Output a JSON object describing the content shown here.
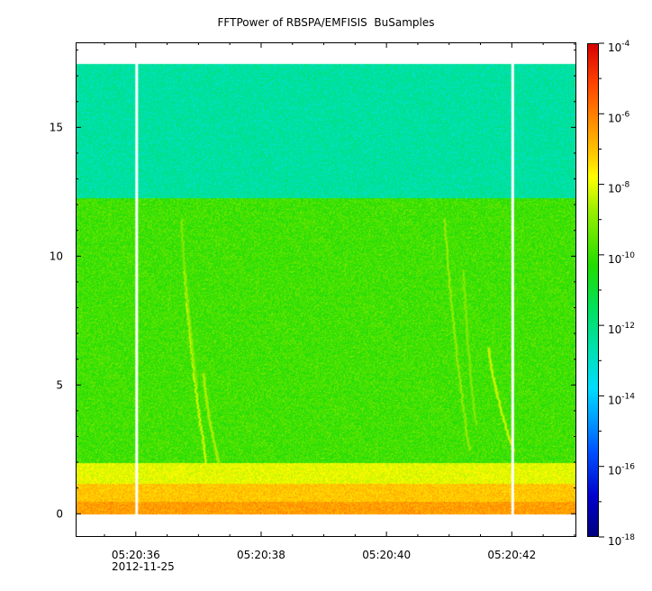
{
  "chart_data": {
    "type": "heatmap",
    "title": "FFTPower of RBSPA/EMFISIS  BuSamples",
    "xlabel": "",
    "ylabel": "",
    "x_ticks": [
      "05:20:36",
      "05:20:38",
      "05:20:40",
      "05:20:42"
    ],
    "x_tick_seconds": [
      36,
      38,
      40,
      42
    ],
    "x_range_seconds": [
      35.04,
      43.03
    ],
    "x_date_label": "2012-11-25",
    "ylim": [
      -0.9,
      18.3
    ],
    "y_ticks": [
      0,
      5,
      10,
      15
    ],
    "colorbar": {
      "scale": "log",
      "range_exponents": [
        -18,
        -4
      ],
      "tick_base": "10",
      "tick_exponents": [
        "-4",
        "-6",
        "-8",
        "-10",
        "-12",
        "-14",
        "-16",
        "-18"
      ]
    },
    "data_gaps_seconds": [
      36.0,
      42.0
    ],
    "bands": [
      {
        "y_range": [
          0,
          0.5
        ],
        "log10_power": -6.9
      },
      {
        "y_range": [
          0.5,
          1.2
        ],
        "log10_power": -7.5
      },
      {
        "y_range": [
          1.2,
          2.0
        ],
        "log10_power": -8.7
      },
      {
        "y_range": [
          2.0,
          12.3
        ],
        "log10_power": -10.3
      },
      {
        "y_range": [
          12.3,
          17.5
        ],
        "log10_power": -12.6
      }
    ],
    "emission_streaks": [
      {
        "t_start": 36.75,
        "y_start": 9.5,
        "t_end": 37.1,
        "y_end": 2.0,
        "log10_power": -8.7
      },
      {
        "t_start": 36.7,
        "y_start": 11.5,
        "t_end": 36.95,
        "y_end": 5.0,
        "log10_power": -9.6
      },
      {
        "t_start": 37.05,
        "y_start": 5.5,
        "t_end": 37.3,
        "y_end": 2.0,
        "log10_power": -9.3
      },
      {
        "t_start": 40.9,
        "y_start": 11.5,
        "t_end": 41.3,
        "y_end": 2.5,
        "log10_power": -9.3
      },
      {
        "t_start": 41.6,
        "y_start": 6.5,
        "t_end": 42.0,
        "y_end": 2.5,
        "log10_power": -9.0
      },
      {
        "t_start": 41.2,
        "y_start": 9.5,
        "t_end": 41.4,
        "y_end": 3.5,
        "log10_power": -9.6
      }
    ]
  }
}
